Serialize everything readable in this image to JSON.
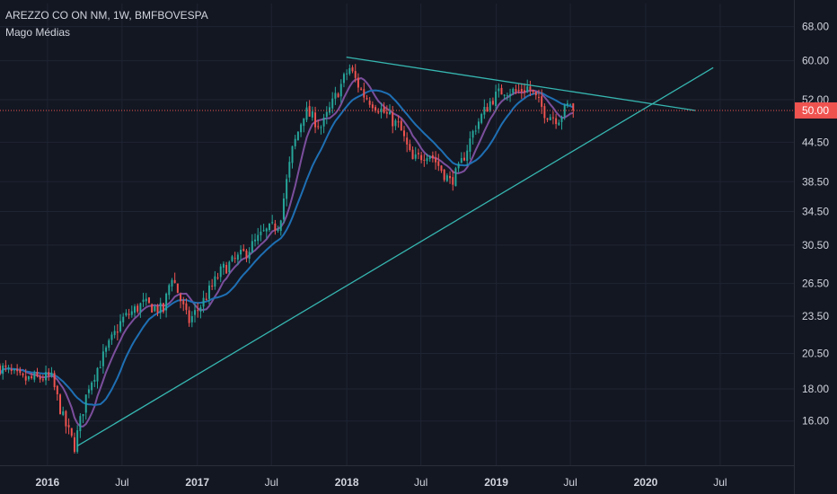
{
  "legend": {
    "symbol_line": "AREZZO CO ON NM, 1W, BMFBOVESPA",
    "indicator": "Mago Médias"
  },
  "colors": {
    "background": "#131722",
    "grid": "#1f2433",
    "axis_text": "#d1d4dc",
    "up_candle": "#26a69a",
    "down_candle": "#ef5350",
    "ma_fast": "#7b4e9c",
    "ma_slow": "#1e6fb3",
    "trendline": "#36b6b0",
    "price_line": "#ef5350"
  },
  "chart_data": {
    "type": "candlestick",
    "y_scale": "log",
    "ylim": [
      13.6,
      74.0
    ],
    "xlim": [
      "2015-09-07",
      "2020-12-28"
    ],
    "y_ticks": [
      "68.00",
      "60.00",
      "52.00",
      "50.00",
      "44.50",
      "38.50",
      "34.50",
      "30.50",
      "26.50",
      "23.50",
      "20.50",
      "18.00",
      "16.00"
    ],
    "x_ticks": [
      {
        "date": "2016-01-01",
        "label": "2016"
      },
      {
        "date": "2016-07-01",
        "label": "Jul"
      },
      {
        "date": "2017-01-01",
        "label": "2017"
      },
      {
        "date": "2017-07-01",
        "label": "Jul"
      },
      {
        "date": "2018-01-01",
        "label": "2018"
      },
      {
        "date": "2018-07-01",
        "label": "Jul"
      },
      {
        "date": "2019-01-01",
        "label": "2019"
      },
      {
        "date": "2019-07-01",
        "label": "Jul"
      },
      {
        "date": "2020-01-01",
        "label": "2020"
      },
      {
        "date": "2020-07-01",
        "label": "Jul"
      }
    ],
    "last_price": "50.00",
    "close_anchors": [
      [
        "2015-09-07",
        19.5
      ],
      [
        "2015-11-01",
        18.6
      ],
      [
        "2016-01-10",
        18.8
      ],
      [
        "2016-02-10",
        16.0
      ],
      [
        "2016-03-07",
        14.6
      ],
      [
        "2016-04-10",
        18.2
      ],
      [
        "2016-05-20",
        20.5
      ],
      [
        "2016-07-01",
        23.2
      ],
      [
        "2016-08-20",
        24.6
      ],
      [
        "2016-10-10",
        24.0
      ],
      [
        "2016-10-30",
        27.4
      ],
      [
        "2016-12-10",
        23.0
      ],
      [
        "2017-01-10",
        24.5
      ],
      [
        "2017-03-01",
        27.8
      ],
      [
        "2017-05-01",
        29.8
      ],
      [
        "2017-06-10",
        31.8
      ],
      [
        "2017-07-20",
        33.0
      ],
      [
        "2017-08-20",
        43.0
      ],
      [
        "2017-09-20",
        50.0
      ],
      [
        "2017-11-01",
        47.0
      ],
      [
        "2017-12-01",
        52.0
      ],
      [
        "2018-01-07",
        58.5
      ],
      [
        "2018-02-10",
        53.0
      ],
      [
        "2018-03-20",
        50.5
      ],
      [
        "2018-05-10",
        47.0
      ],
      [
        "2018-06-10",
        41.5
      ],
      [
        "2018-07-20",
        43.0
      ],
      [
        "2018-09-10",
        38.5
      ],
      [
        "2018-09-30",
        40.0
      ],
      [
        "2018-11-10",
        47.0
      ],
      [
        "2018-12-20",
        52.0
      ],
      [
        "2019-01-20",
        54.0
      ],
      [
        "2019-02-20",
        53.5
      ],
      [
        "2019-03-20",
        54.5
      ],
      [
        "2019-05-01",
        49.5
      ],
      [
        "2019-06-01",
        48.5
      ],
      [
        "2019-07-01",
        51.5
      ],
      [
        "2019-07-14",
        50.0
      ]
    ],
    "series": [
      {
        "name": "",
        "kind": "ma",
        "period": 8,
        "color_key": "ma_fast"
      },
      {
        "name": "",
        "kind": "ma",
        "period": 17,
        "color_key": "ma_slow"
      }
    ],
    "trendlines": [
      {
        "from": [
          "2016-03-14",
          14.6
        ],
        "to": [
          "2020-06-14",
          58.5
        ]
      },
      {
        "from": [
          "2017-12-31",
          60.8
        ],
        "to": [
          "2020-05-01",
          50.0
        ]
      }
    ],
    "price_line": {
      "value": 50.0,
      "style": "dotted"
    }
  }
}
